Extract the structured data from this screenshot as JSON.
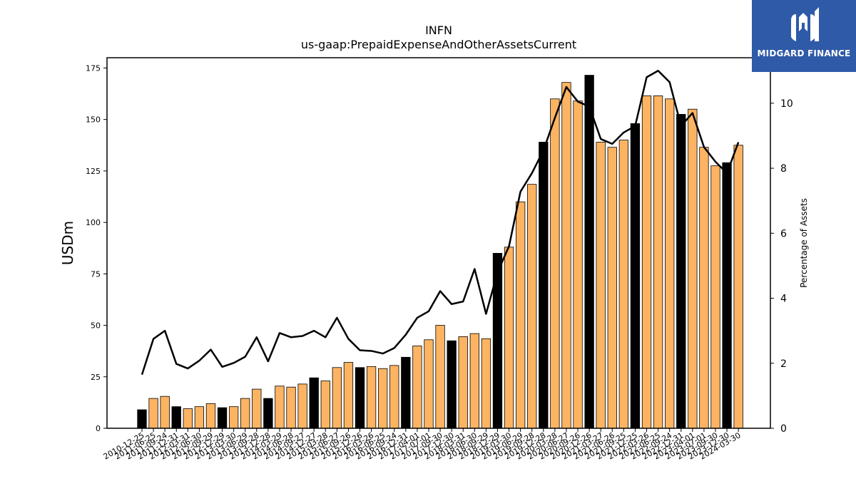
{
  "header": {
    "ticker": "INFN",
    "concept": "us-gaap:PrepaidExpenseAndOtherAssetsCurrent"
  },
  "logo": {
    "text": "MIDGARD FINANCE",
    "icon": "midgard-logo-icon",
    "color": "#2f5aa8"
  },
  "colors": {
    "fiscal_year_end_bar": "#000000",
    "quarter_bar": "#fdb462",
    "line": "#000000"
  },
  "chart_data": {
    "type": "bar",
    "title": "INFN",
    "subtitle": "us-gaap:PrepaidExpenseAndOtherAssetsCurrent",
    "ylabel": "USDm",
    "y2label": "Percentage of Assets",
    "ylim": [
      0,
      180
    ],
    "y2lim": [
      0,
      11.4
    ],
    "yticks": [
      0,
      25,
      50,
      75,
      100,
      125,
      150,
      175
    ],
    "y2ticks": [
      0,
      2,
      4,
      6,
      8,
      10
    ],
    "grid": false,
    "categories": [
      "2010-12-25",
      "2011-06-25",
      "2011-09-24",
      "2011-12-31",
      "2012-03-31",
      "2012-06-30",
      "2012-09-29",
      "2012-12-29",
      "2013-03-30",
      "2013-06-29",
      "2013-09-28",
      "2013-12-28",
      "2014-03-29",
      "2014-06-28",
      "2014-09-27",
      "2014-12-27",
      "2015-03-28",
      "2015-06-27",
      "2015-09-26",
      "2015-12-26",
      "2016-03-26",
      "2016-06-25",
      "2016-09-24",
      "2016-12-31",
      "2017-04-01",
      "2017-07-01",
      "2017-09-30",
      "2017-12-30",
      "2018-03-31",
      "2018-06-30",
      "2018-09-29",
      "2018-12-29",
      "2019-03-30",
      "2019-06-29",
      "2019-09-28",
      "2019-12-28",
      "2020-03-28",
      "2020-06-27",
      "2020-09-26",
      "2020-12-26",
      "2021-03-27",
      "2021-06-26",
      "2021-09-25",
      "2021-12-25",
      "2022-03-26",
      "2022-06-25",
      "2022-09-24",
      "2022-12-31",
      "2023-04-01",
      "2023-07-01",
      "2023-09-30",
      "2023-12-30",
      "2024-03-30"
    ],
    "series": [
      {
        "kind": "bar",
        "values": [
          9,
          14.5,
          15.5,
          10.5,
          9.5,
          10.5,
          12,
          10,
          10.5,
          14.5,
          19,
          14.5,
          20.5,
          20,
          21.5,
          24.5,
          23,
          29.5,
          32,
          29.5,
          30,
          29,
          30.5,
          34.5,
          40,
          43,
          50,
          42.5,
          44.5,
          46,
          43.5,
          85,
          88,
          110,
          118.5,
          139,
          160,
          168,
          159,
          171.5,
          139,
          136.5,
          140,
          148,
          161.5,
          161.5,
          160,
          152.5,
          155,
          136.5,
          127.5,
          129,
          137.5
        ],
        "fiscal_year_end": [
          true,
          false,
          false,
          true,
          false,
          false,
          false,
          true,
          false,
          false,
          false,
          true,
          false,
          false,
          false,
          true,
          false,
          false,
          false,
          true,
          false,
          false,
          false,
          true,
          false,
          false,
          false,
          true,
          false,
          false,
          false,
          true,
          false,
          false,
          false,
          true,
          false,
          false,
          false,
          true,
          false,
          false,
          false,
          true,
          false,
          false,
          false,
          true,
          false,
          false,
          false,
          true,
          false
        ]
      },
      {
        "kind": "line",
        "axis": "right",
        "values": [
          1.65,
          2.75,
          3.0,
          1.98,
          1.84,
          2.08,
          2.42,
          1.89,
          2.01,
          2.2,
          2.8,
          2.06,
          2.93,
          2.8,
          2.84,
          3.0,
          2.8,
          3.4,
          2.75,
          2.4,
          2.38,
          2.3,
          2.47,
          2.88,
          3.4,
          3.6,
          4.22,
          3.82,
          3.9,
          4.9,
          3.52,
          4.8,
          5.6,
          7.28,
          7.85,
          8.55,
          9.55,
          10.5,
          10.05,
          9.9,
          8.9,
          8.75,
          9.1,
          9.3,
          10.8,
          11.0,
          10.65,
          9.3,
          9.7,
          8.65,
          8.2,
          7.85,
          8.8
        ]
      }
    ]
  }
}
